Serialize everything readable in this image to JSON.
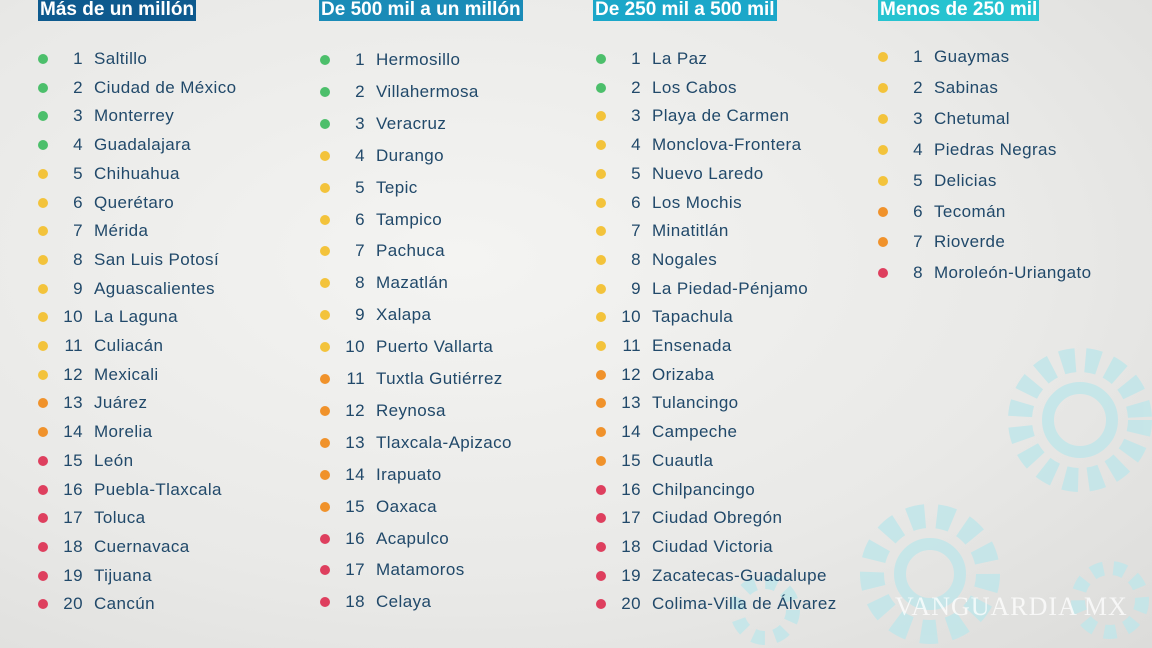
{
  "colors": {
    "green": "#4cbf6b",
    "yellow": "#f3c33b",
    "orange": "#f0922b",
    "red": "#de3f5e"
  },
  "watermark": "VANGUARDIA MX",
  "columns": [
    {
      "title": "Más de un millón",
      "header_color": "#0e5a8e",
      "items": [
        {
          "rank": "1",
          "city": "Saltillo",
          "status": "green"
        },
        {
          "rank": "2",
          "city": "Ciudad de México",
          "status": "green"
        },
        {
          "rank": "3",
          "city": "Monterrey",
          "status": "green"
        },
        {
          "rank": "4",
          "city": "Guadalajara",
          "status": "green"
        },
        {
          "rank": "5",
          "city": "Chihuahua",
          "status": "yellow"
        },
        {
          "rank": "6",
          "city": "Querétaro",
          "status": "yellow"
        },
        {
          "rank": "7",
          "city": "Mérida",
          "status": "yellow"
        },
        {
          "rank": "8",
          "city": "San Luis Potosí",
          "status": "yellow"
        },
        {
          "rank": "9",
          "city": "Aguascalientes",
          "status": "yellow"
        },
        {
          "rank": "10",
          "city": "La Laguna",
          "status": "yellow"
        },
        {
          "rank": "11",
          "city": "Culiacán",
          "status": "yellow"
        },
        {
          "rank": "12",
          "city": "Mexicali",
          "status": "yellow"
        },
        {
          "rank": "13",
          "city": "Juárez",
          "status": "orange"
        },
        {
          "rank": "14",
          "city": "Morelia",
          "status": "orange"
        },
        {
          "rank": "15",
          "city": "León",
          "status": "red"
        },
        {
          "rank": "16",
          "city": "Puebla-Tlaxcala",
          "status": "red"
        },
        {
          "rank": "17",
          "city": "Toluca",
          "status": "red"
        },
        {
          "rank": "18",
          "city": "Cuernavaca",
          "status": "red"
        },
        {
          "rank": "19",
          "city": "Tijuana",
          "status": "red"
        },
        {
          "rank": "20",
          "city": "Cancún",
          "status": "red"
        }
      ]
    },
    {
      "title": "De 500 mil a un millón",
      "header_color": "#1a8bb7",
      "items": [
        {
          "rank": "1",
          "city": "Hermosillo",
          "status": "green"
        },
        {
          "rank": "2",
          "city": "Villahermosa",
          "status": "green"
        },
        {
          "rank": "3",
          "city": "Veracruz",
          "status": "green"
        },
        {
          "rank": "4",
          "city": "Durango",
          "status": "yellow"
        },
        {
          "rank": "5",
          "city": "Tepic",
          "status": "yellow"
        },
        {
          "rank": "6",
          "city": "Tampico",
          "status": "yellow"
        },
        {
          "rank": "7",
          "city": "Pachuca",
          "status": "yellow"
        },
        {
          "rank": "8",
          "city": "Mazatlán",
          "status": "yellow"
        },
        {
          "rank": "9",
          "city": "Xalapa",
          "status": "yellow"
        },
        {
          "rank": "10",
          "city": "Puerto Vallarta",
          "status": "yellow"
        },
        {
          "rank": "11",
          "city": "Tuxtla Gutiérrez",
          "status": "orange"
        },
        {
          "rank": "12",
          "city": "Reynosa",
          "status": "orange"
        },
        {
          "rank": "13",
          "city": "Tlaxcala-Apizaco",
          "status": "orange"
        },
        {
          "rank": "14",
          "city": "Irapuato",
          "status": "orange"
        },
        {
          "rank": "15",
          "city": "Oaxaca",
          "status": "orange"
        },
        {
          "rank": "16",
          "city": "Acapulco",
          "status": "red"
        },
        {
          "rank": "17",
          "city": "Matamoros",
          "status": "red"
        },
        {
          "rank": "18",
          "city": "Celaya",
          "status": "red"
        }
      ]
    },
    {
      "title": "De 250 mil a 500 mil",
      "header_color": "#1ba7c9",
      "items": [
        {
          "rank": "1",
          "city": "La Paz",
          "status": "green"
        },
        {
          "rank": "2",
          "city": "Los Cabos",
          "status": "green"
        },
        {
          "rank": "3",
          "city": "Playa de Carmen",
          "status": "yellow"
        },
        {
          "rank": "4",
          "city": "Monclova-Frontera",
          "status": "yellow"
        },
        {
          "rank": "5",
          "city": "Nuevo Laredo",
          "status": "yellow"
        },
        {
          "rank": "6",
          "city": "Los Mochis",
          "status": "yellow"
        },
        {
          "rank": "7",
          "city": "Minatitlán",
          "status": "yellow"
        },
        {
          "rank": "8",
          "city": "Nogales",
          "status": "yellow"
        },
        {
          "rank": "9",
          "city": "La Piedad-Pénjamo",
          "status": "yellow"
        },
        {
          "rank": "10",
          "city": "Tapachula",
          "status": "yellow"
        },
        {
          "rank": "11",
          "city": "Ensenada",
          "status": "yellow"
        },
        {
          "rank": "12",
          "city": "Orizaba",
          "status": "orange"
        },
        {
          "rank": "13",
          "city": "Tulancingo",
          "status": "orange"
        },
        {
          "rank": "14",
          "city": "Campeche",
          "status": "orange"
        },
        {
          "rank": "15",
          "city": "Cuautla",
          "status": "orange"
        },
        {
          "rank": "16",
          "city": "Chilpancingo",
          "status": "red"
        },
        {
          "rank": "17",
          "city": "Ciudad Obregón",
          "status": "red"
        },
        {
          "rank": "18",
          "city": "Ciudad Victoria",
          "status": "red"
        },
        {
          "rank": "19",
          "city": "Zacatecas-Guadalupe",
          "status": "red"
        },
        {
          "rank": "20",
          "city": "Colima-Villa de Álvarez",
          "status": "red"
        }
      ]
    },
    {
      "title": "Menos de 250 mil",
      "header_color": "#26c3d0",
      "items": [
        {
          "rank": "1",
          "city": "Guaymas",
          "status": "yellow"
        },
        {
          "rank": "2",
          "city": "Sabinas",
          "status": "yellow"
        },
        {
          "rank": "3",
          "city": "Chetumal",
          "status": "yellow"
        },
        {
          "rank": "4",
          "city": "Piedras Negras",
          "status": "yellow"
        },
        {
          "rank": "5",
          "city": "Delicias",
          "status": "yellow"
        },
        {
          "rank": "6",
          "city": "Tecomán",
          "status": "orange"
        },
        {
          "rank": "7",
          "city": "Rioverde",
          "status": "orange"
        },
        {
          "rank": "8",
          "city": "Moroleón-Uriangato",
          "status": "red"
        }
      ]
    }
  ]
}
